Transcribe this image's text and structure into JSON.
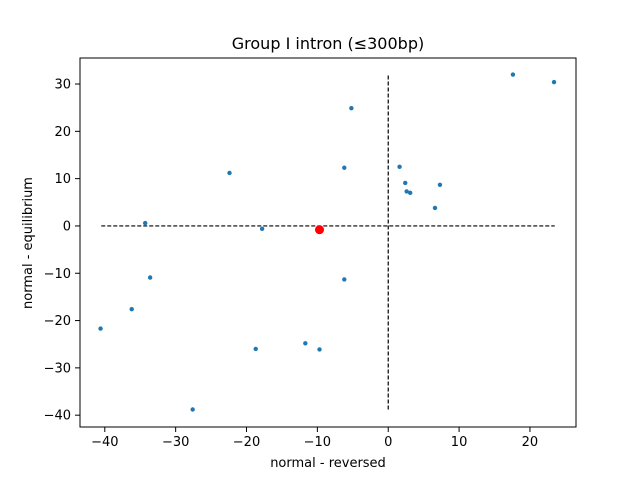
{
  "chart_data": {
    "type": "scatter",
    "title": "Group I intron (≤300bp)",
    "xlabel": "normal - reversed",
    "ylabel": "normal - equilibrium",
    "xlim": [
      -43.5,
      26.5
    ],
    "ylim": [
      -42.5,
      35.5
    ],
    "xticks": [
      -40,
      -30,
      -20,
      -10,
      0,
      10,
      20
    ],
    "yticks": [
      -40,
      -30,
      -20,
      -10,
      0,
      10,
      20,
      30
    ],
    "xtick_labels": [
      "−40",
      "−30",
      "−20",
      "−10",
      "0",
      "10",
      "20"
    ],
    "ytick_labels": [
      "−40",
      "−30",
      "−20",
      "−10",
      "0",
      "10",
      "20",
      "30"
    ],
    "grid": false,
    "colors": {
      "points": "#1f77b4",
      "highlight": "#ff0000",
      "reference_lines": "#000000"
    },
    "reference_lines": {
      "horizontal": {
        "y": 0,
        "x_from": -40.5,
        "x_to": 23.5,
        "style": "dashed"
      },
      "vertical": {
        "x": 0,
        "y_from": -38.8,
        "y_to": 32,
        "style": "dashed"
      }
    },
    "series": [
      {
        "points": [
          [
            17.6,
            32.0
          ],
          [
            23.4,
            30.4
          ],
          [
            -5.2,
            24.9
          ],
          [
            -22.4,
            11.2
          ],
          [
            -6.2,
            12.3
          ],
          [
            1.6,
            12.5
          ],
          [
            2.4,
            9.1
          ],
          [
            2.6,
            7.3
          ],
          [
            3.1,
            7.0
          ],
          [
            7.3,
            8.7
          ],
          [
            6.6,
            3.8
          ],
          [
            -34.3,
            0.6
          ],
          [
            -17.8,
            -0.6
          ],
          [
            -33.6,
            -10.9
          ],
          [
            -6.2,
            -11.3
          ],
          [
            -36.2,
            -17.6
          ],
          [
            -40.6,
            -21.7
          ],
          [
            -11.7,
            -24.8
          ],
          [
            -18.7,
            -26.0
          ],
          [
            -9.7,
            -26.1
          ],
          [
            -27.6,
            -38.8
          ]
        ],
        "color": "#1f77b4"
      },
      {
        "points": [
          [
            -9.7,
            -0.8
          ]
        ],
        "color": "#ff0000",
        "highlight": true
      }
    ]
  }
}
